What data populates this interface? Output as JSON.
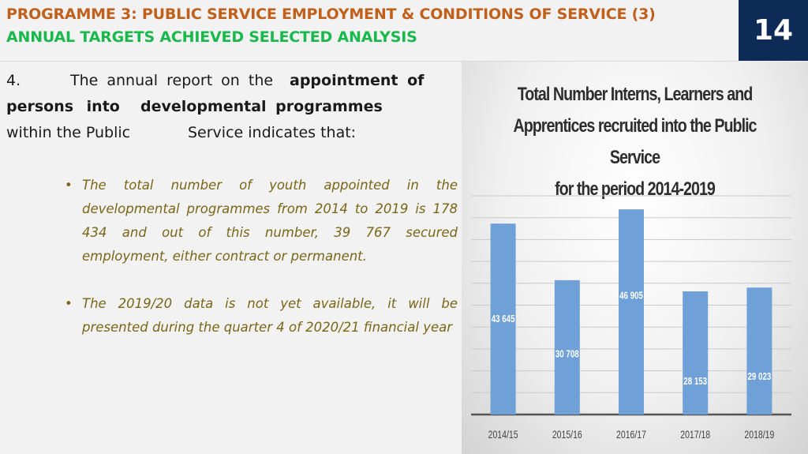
{
  "header": {
    "title_line1": "PROGRAMME 3: PUBLIC SERVICE EMPLOYMENT & CONDITIONS OF SERVICE (3)",
    "title_line2": "ANNUAL TARGETS ACHIEVED SELECTED ANALYSIS",
    "page_number": "14"
  },
  "intro": {
    "number": "4.",
    "text_part1": "The annual report on the",
    "bold_part1": "appointment of",
    "bold_part2": "persons into",
    "bold_part3": "developmental programmes",
    "text_part2": "within the Public",
    "text_part3": "Service indicates that:"
  },
  "bullets": [
    "The total number of youth appointed in the developmental programmes from 2014 to 2019 is 178 434 and out of this number, 39 767 secured employment, either contract or permanent.",
    "The 2019/20 data is not yet available, it will be presented during the quarter 4 of 2020/21 financial year"
  ],
  "colors": {
    "title1": "#c0601b",
    "title2": "#19b84c",
    "page_box": "#0e2a57",
    "bar": "#6fa0d8",
    "bullet_text": "#7a6617"
  },
  "chart_data": {
    "type": "bar",
    "title_lines": [
      "Total Number Interns, Learners and",
      "Apprentices recruited into the Public Service",
      "for the period 2014-2019"
    ],
    "categories": [
      "2014/15",
      "2015/16",
      "2016/17",
      "2017/18",
      "2018/19"
    ],
    "values": [
      43645,
      30708,
      46905,
      28153,
      29023
    ],
    "value_labels": [
      "43 645",
      "30 708",
      "46 905",
      "28 153",
      "29 023"
    ],
    "ylim": [
      0,
      50000
    ],
    "grid": true,
    "legend": "none"
  }
}
